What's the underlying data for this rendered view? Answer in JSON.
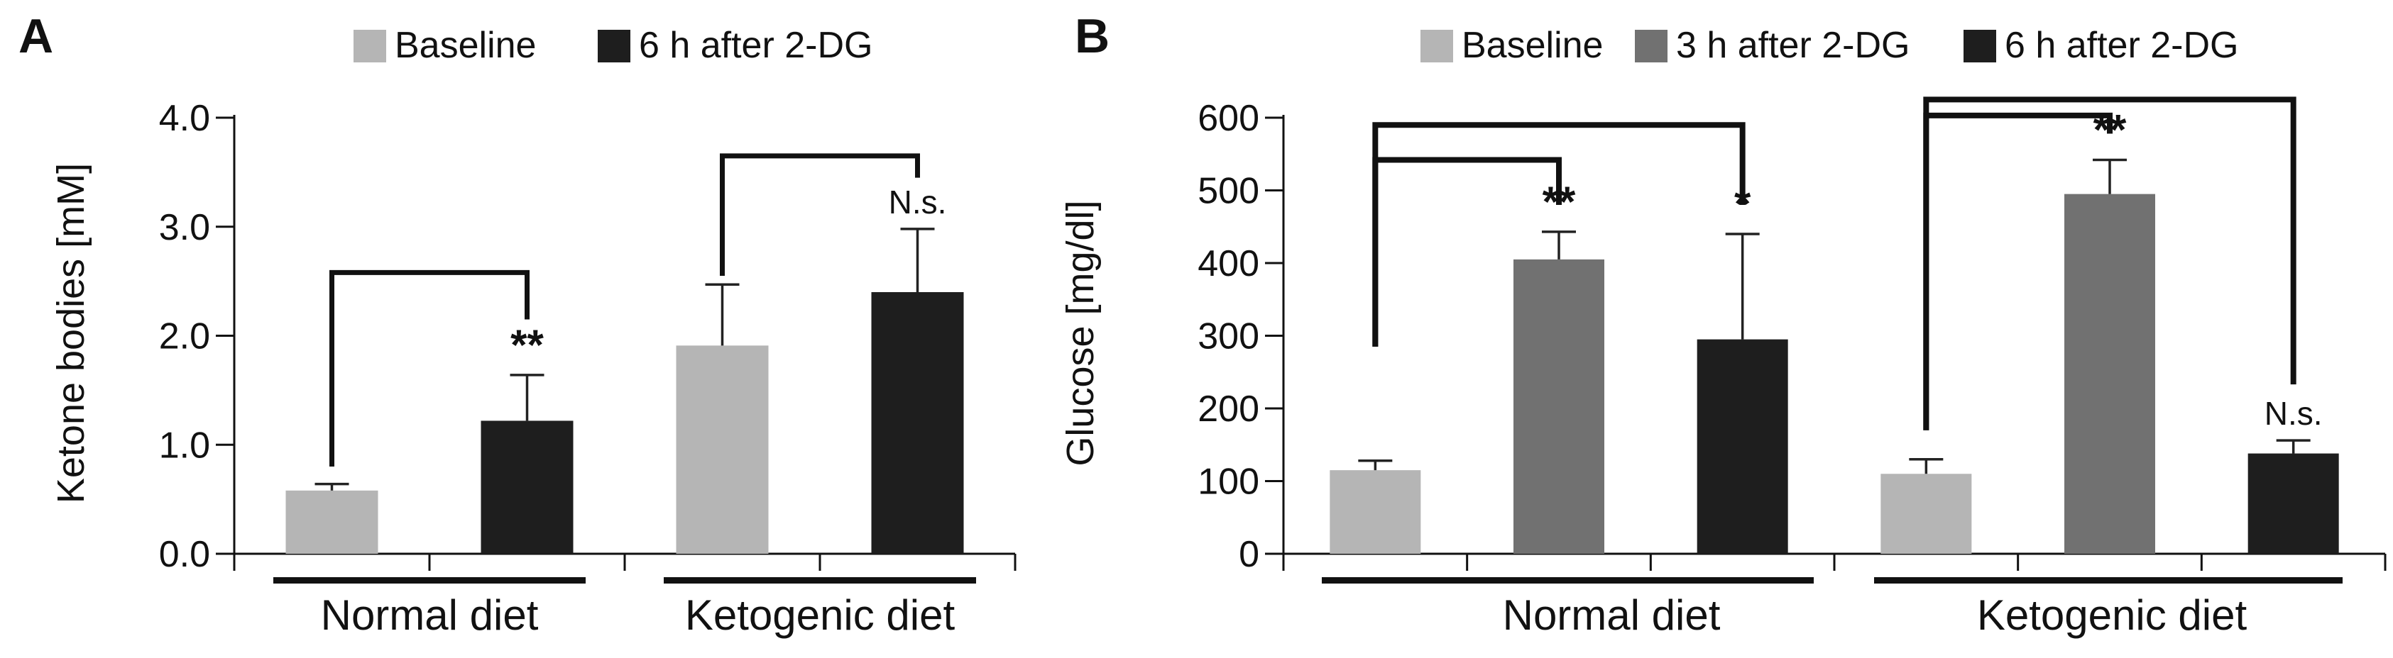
{
  "figure": {
    "panels": [
      {
        "label": "A"
      },
      {
        "label": "B"
      }
    ]
  },
  "chart_data": [
    {
      "type": "bar",
      "panel_label": "A",
      "title": "",
      "xlabel": "",
      "ylabel": "Ketone bodies [mM]",
      "ylim": [
        0,
        4
      ],
      "yticks": [
        0,
        1,
        2,
        3,
        4
      ],
      "ytick_labels": [
        "0.0",
        "1.0",
        "2.0",
        "3.0",
        "4.0"
      ],
      "categories": [
        "Normal diet",
        "Ketogenic diet"
      ],
      "series": [
        {
          "name": "Baseline",
          "color": "#b5b5b5",
          "values": [
            0.58,
            1.91
          ],
          "errors": [
            0.06,
            0.56
          ]
        },
        {
          "name": "6 h after 2-DG",
          "color": "#1e1e1e",
          "values": [
            1.22,
            2.4
          ],
          "errors": [
            0.42,
            0.58
          ]
        }
      ],
      "annotations": [
        {
          "cat": 0,
          "series": 1,
          "text": "**"
        },
        {
          "cat": 1,
          "series": 1,
          "text": "N.s."
        }
      ],
      "brackets": [
        {
          "cat": 0,
          "from": 0,
          "to": 1,
          "top": 2.58,
          "left_end": 0.8,
          "right_end": 2.15
        },
        {
          "cat": 1,
          "from": 0,
          "to": 1,
          "top": 3.65,
          "left_end": 2.55,
          "right_end": 3.45
        }
      ],
      "legend_position": "top",
      "grid": false
    },
    {
      "type": "bar",
      "panel_label": "B",
      "title": "",
      "xlabel": "",
      "ylabel": "Glucose [mg/dl]",
      "ylim": [
        0,
        600
      ],
      "yticks": [
        0,
        100,
        200,
        300,
        400,
        500,
        600
      ],
      "ytick_labels": [
        "0",
        "100",
        "200",
        "300",
        "400",
        "500",
        "600"
      ],
      "categories": [
        "Normal diet",
        "Ketogenic diet"
      ],
      "series": [
        {
          "name": "Baseline",
          "color": "#b5b5b5",
          "values": [
            115,
            110
          ],
          "errors": [
            13,
            20
          ]
        },
        {
          "name": "3 h after 2-DG",
          "color": "#717171",
          "values": [
            405,
            495
          ],
          "errors": [
            38,
            47
          ]
        },
        {
          "name": "6 h after 2-DG",
          "color": "#1e1e1e",
          "values": [
            295,
            138
          ],
          "errors": [
            145,
            18
          ]
        }
      ],
      "annotations": [
        {
          "cat": 0,
          "series": 1,
          "text": "**"
        },
        {
          "cat": 0,
          "series": 2,
          "text": "*"
        },
        {
          "cat": 1,
          "series": 1,
          "text": "**"
        },
        {
          "cat": 1,
          "series": 2,
          "text": "N.s."
        }
      ],
      "brackets": [
        {
          "cat": 0,
          "from": 0,
          "to": 1,
          "top": 542,
          "left_end": 285,
          "right_end": 480
        },
        {
          "cat": 0,
          "from": 0,
          "to": 2,
          "top": 590,
          "left_end": 285,
          "right_end": 480
        },
        {
          "cat": 1,
          "from": 0,
          "to": 1,
          "top": 603,
          "left_end": 170,
          "right_end": 578
        },
        {
          "cat": 1,
          "from": 0,
          "to": 2,
          "top": 625,
          "left_end": 170,
          "right_end": 233
        }
      ],
      "legend_position": "top",
      "grid": false
    }
  ]
}
